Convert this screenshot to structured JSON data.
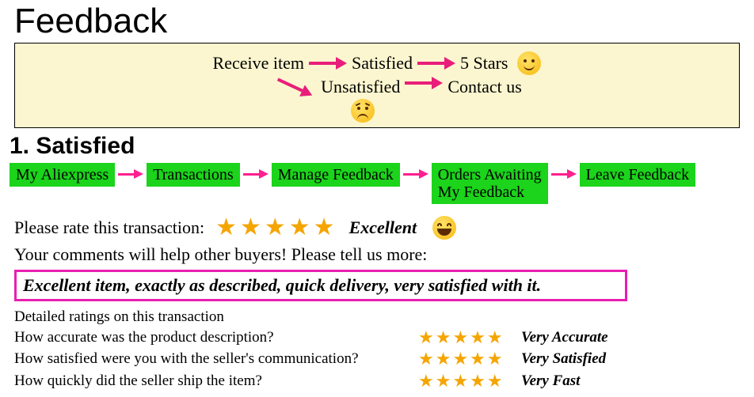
{
  "title": "Feedback",
  "topflow": {
    "receive": "Receive item",
    "satisfied": "Satisfied",
    "stars": "5 Stars",
    "unsatisfied": "Unsatisfied",
    "contact": "Contact us"
  },
  "colors": {
    "arrow_pink": "#e91e7a",
    "arrow_magenta": "#ff1f8f",
    "green_box": "#1bd41b",
    "msg_border": "#e91eb0",
    "topbox_bg": "#fbf6cf",
    "star_color": "#f5a500"
  },
  "section1": {
    "heading": "1. Satisfied",
    "steps": [
      "My Aliexpress",
      "Transactions",
      "Manage Feedback",
      "Orders Awaiting\nMy Feedback",
      "Leave Feedback"
    ]
  },
  "rate_line": "Please rate this transaction:",
  "rate_stars": "★★★★★",
  "rate_word": "Excellent",
  "comments_line": "Your comments will help other buyers! Please tell us more:",
  "message": "Excellent item, exactly as described, quick delivery, very satisfied with it.",
  "detailed": {
    "heading": "Detailed ratings on this transaction",
    "rows": [
      {
        "q": "How accurate was the product description?",
        "stars": "★★★★★",
        "label": "Very Accurate"
      },
      {
        "q": "How satisfied were you with the seller's communication?",
        "stars": "★★★★★",
        "label": "Very Satisfied"
      },
      {
        "q": "How quickly did the seller ship the item?",
        "stars": "★★★★★",
        "label": "Very Fast"
      }
    ]
  }
}
